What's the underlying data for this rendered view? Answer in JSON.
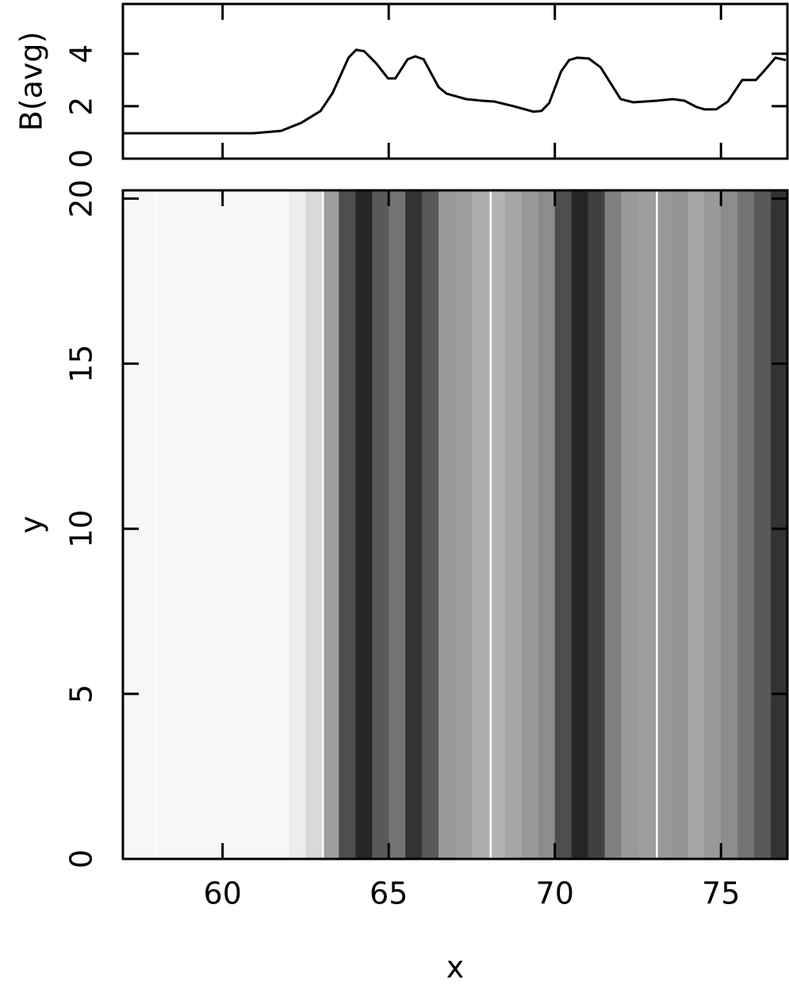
{
  "chart_data": [
    {
      "type": "line",
      "ylabel": "B(avg)",
      "color": "#000000",
      "x": [
        57.02,
        60.93,
        61.76,
        62.36,
        62.95,
        63.31,
        63.79,
        64.02,
        64.26,
        64.62,
        64.98,
        65.2,
        65.57,
        65.8,
        66.05,
        66.5,
        66.74,
        67.33,
        67.81,
        68.17,
        68.76,
        69.36,
        69.6,
        69.83,
        70.19,
        70.43,
        70.67,
        71.02,
        71.38,
        71.98,
        72.36,
        73.07,
        73.55,
        73.9,
        74.26,
        74.5,
        74.86,
        75.21,
        75.64,
        76.05,
        76.29,
        76.64,
        76.95
      ],
      "values": [
        0.97,
        0.97,
        1.06,
        1.36,
        1.82,
        2.5,
        3.85,
        4.15,
        4.1,
        3.64,
        3.06,
        3.06,
        3.79,
        3.9,
        3.79,
        2.73,
        2.48,
        2.27,
        2.21,
        2.18,
        2.0,
        1.79,
        1.82,
        2.12,
        3.33,
        3.76,
        3.85,
        3.82,
        3.48,
        2.27,
        2.15,
        2.21,
        2.27,
        2.21,
        1.97,
        1.88,
        1.88,
        2.18,
        3.0,
        3.0,
        3.33,
        3.85,
        3.76
      ],
      "xlim": [
        57,
        77
      ],
      "ylim": [
        0,
        5.9
      ],
      "xticks": [
        60,
        65,
        70,
        75
      ],
      "yticks": [
        0,
        2,
        4
      ]
    },
    {
      "type": "heatmap",
      "xlabel": "x",
      "ylabel": "y",
      "x_edges": [
        57,
        62,
        62.5,
        63,
        63.5,
        64,
        64.5,
        65,
        65.5,
        66,
        66.5,
        67,
        67.5,
        68,
        68.5,
        69,
        69.5,
        70,
        70.5,
        71,
        71.5,
        72,
        72.5,
        73,
        73.5,
        74,
        74.5,
        75,
        75.5,
        76,
        76.5,
        77
      ],
      "gray": [
        0.97,
        0.93,
        0.85,
        0.62,
        0.3,
        0.15,
        0.35,
        0.45,
        0.2,
        0.35,
        0.6,
        0.62,
        0.68,
        0.7,
        0.65,
        0.6,
        0.55,
        0.3,
        0.15,
        0.25,
        0.5,
        0.6,
        0.62,
        0.6,
        0.58,
        0.65,
        0.6,
        0.55,
        0.45,
        0.35,
        0.2
      ],
      "vlines": [
        58.0,
        63.02,
        68.07,
        73.07
      ],
      "xlim": [
        57,
        77
      ],
      "ylim": [
        0,
        20.25
      ],
      "xticks": [
        60,
        65,
        70,
        75
      ],
      "yticks": [
        0,
        5,
        10,
        15,
        20
      ]
    }
  ]
}
